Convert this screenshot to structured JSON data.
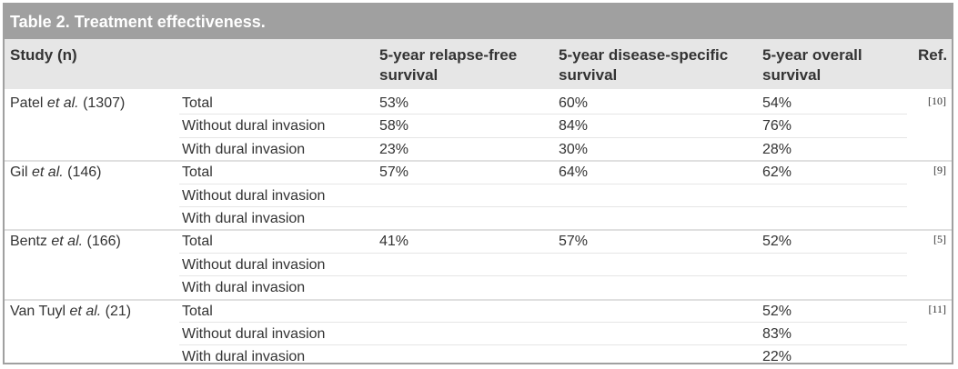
{
  "table": {
    "title": "Table 2. Treatment effectiveness.",
    "headers": {
      "study": "Study (n)",
      "rfs_line1": "5-year relapse-free",
      "rfs_line2": "survival",
      "dss_line1": "5-year disease-specific",
      "dss_line2": "survival",
      "os_line1": "5-year overall",
      "os_line2": "survival",
      "ref": "Ref."
    },
    "studies": [
      {
        "author": "Patel",
        "etal": "et al.",
        "n": "(1307)",
        "ref": "[10]",
        "rows": [
          {
            "group": "Total",
            "rfs": "53%",
            "dss": "60%",
            "os": "54%"
          },
          {
            "group": "Without dural invasion",
            "rfs": "58%",
            "dss": "84%",
            "os": "76%"
          },
          {
            "group": "With dural invasion",
            "rfs": "23%",
            "dss": "30%",
            "os": "28%"
          }
        ]
      },
      {
        "author": "Gil",
        "etal": "et al.",
        "n": "(146)",
        "ref": "[9]",
        "rows": [
          {
            "group": "Total",
            "rfs": "57%",
            "dss": "64%",
            "os": "62%"
          },
          {
            "group": "Without dural invasion",
            "rfs": "",
            "dss": "",
            "os": ""
          },
          {
            "group": "With dural invasion",
            "rfs": "",
            "dss": "",
            "os": ""
          }
        ]
      },
      {
        "author": "Bentz",
        "etal": "et al.",
        "n": "(166)",
        "ref": "[5]",
        "rows": [
          {
            "group": "Total",
            "rfs": "41%",
            "dss": "57%",
            "os": "52%"
          },
          {
            "group": "Without dural invasion",
            "rfs": "",
            "dss": "",
            "os": ""
          },
          {
            "group": "With dural invasion",
            "rfs": "",
            "dss": "",
            "os": ""
          }
        ]
      },
      {
        "author": "Van Tuyl",
        "etal": "et al.",
        "n": "(21)",
        "ref": "[11]",
        "rows": [
          {
            "group": "Total",
            "rfs": "",
            "dss": "",
            "os": "52%"
          },
          {
            "group": "Without dural invasion",
            "rfs": "",
            "dss": "",
            "os": "83%"
          },
          {
            "group": "With dural invasion",
            "rfs": "",
            "dss": "",
            "os": "22%"
          }
        ]
      }
    ]
  },
  "colors": {
    "title_bg": "#a0a0a0",
    "header_bg": "#e6e6e6",
    "text": "#333333"
  }
}
